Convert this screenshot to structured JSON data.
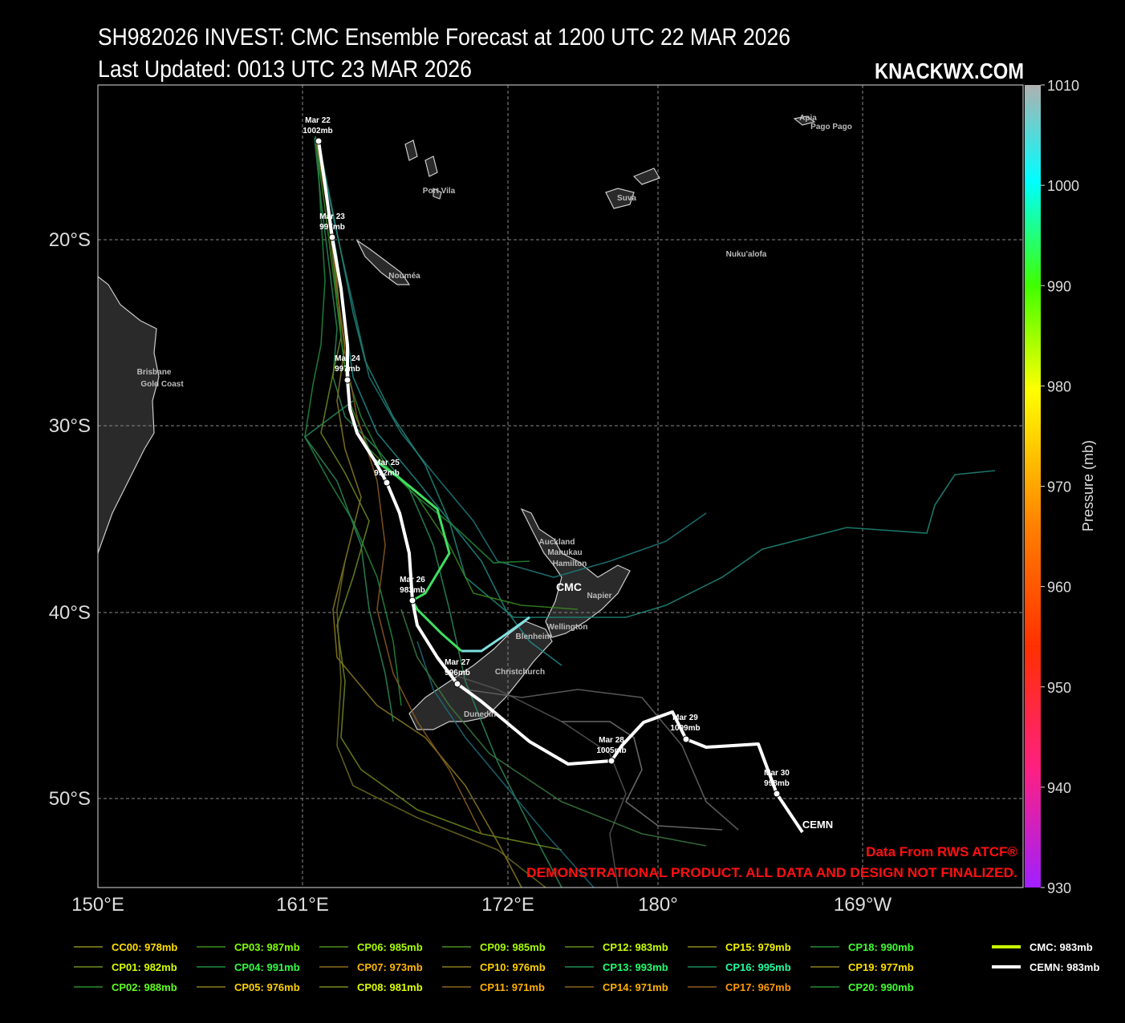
{
  "header": {
    "title": "SH982026 INVEST: CMC Ensemble Forecast at 1200 UTC 22 MAR 2026",
    "subtitle": "Last Updated: 0013 UTC 23 MAR 2026",
    "brand": "KNACKWX.COM"
  },
  "map": {
    "lat_labels": [
      "20°S",
      "30°S",
      "40°S",
      "50°S"
    ],
    "lon_labels": [
      "150°E",
      "161°E",
      "172°E",
      "180°",
      "169°W"
    ],
    "places": [
      "Apia",
      "Pago Pago",
      "Port Vila",
      "Suva",
      "Nuku'alofa",
      "Nouméa",
      "Brisbane",
      "Gold Coast",
      "Auckland",
      "Manukau",
      "Hamilton",
      "Napier",
      "Wellington",
      "Blenheim",
      "Christchurch",
      "Dunedin"
    ],
    "track_points": [
      {
        "date": "Mar 22",
        "pressure": "1002mb"
      },
      {
        "date": "Mar 23",
        "pressure": "997mb"
      },
      {
        "date": "Mar 24",
        "pressure": "997mb"
      },
      {
        "date": "Mar 25",
        "pressure": "992mb"
      },
      {
        "date": "Mar 26",
        "pressure": "983mb"
      },
      {
        "date": "Mar 27",
        "pressure": "996mb"
      },
      {
        "date": "Mar 28",
        "pressure": "1005mb"
      },
      {
        "date": "Mar 29",
        "pressure": "1009mb"
      },
      {
        "date": "Mar 30",
        "pressure": "998mb"
      }
    ],
    "track_names": [
      "CMC",
      "CEMN"
    ]
  },
  "colorbar": {
    "label": "Pressure (mb)",
    "lim": [
      930,
      1010
    ],
    "ticks": [
      930,
      940,
      950,
      960,
      970,
      980,
      990,
      1000,
      1010
    ]
  },
  "legend": [
    {
      "label": "CC00: 978mb",
      "color": "#ffe000",
      "line": "#8a8a20"
    },
    {
      "label": "CP01: 982mb",
      "color": "#d8ff00",
      "line": "#6f8a20"
    },
    {
      "label": "CP02: 988mb",
      "color": "#60ff20",
      "line": "#2a8a30"
    },
    {
      "label": "CP03: 987mb",
      "color": "#80ff00",
      "line": "#3a8a20"
    },
    {
      "label": "CP04: 991mb",
      "color": "#30ff40",
      "line": "#208a40"
    },
    {
      "label": "CP05: 976mb",
      "color": "#ffd000",
      "line": "#8a7a20"
    },
    {
      "label": "CP06: 985mb",
      "color": "#a8ff00",
      "line": "#4f8a20"
    },
    {
      "label": "CP07: 973mb",
      "color": "#ffb800",
      "line": "#8a6a20"
    },
    {
      "label": "CP08: 981mb",
      "color": "#e0ff00",
      "line": "#7a8a20"
    },
    {
      "label": "CP09: 985mb",
      "color": "#a8ff00",
      "line": "#4f8a20"
    },
    {
      "label": "CP10: 976mb",
      "color": "#ffd000",
      "line": "#8a7a20"
    },
    {
      "label": "CP11: 971mb",
      "color": "#ffb000",
      "line": "#8a6420"
    },
    {
      "label": "CP12: 983mb",
      "color": "#c8ff00",
      "line": "#608a20"
    },
    {
      "label": "CP13: 993mb",
      "color": "#20ff70",
      "line": "#208a50"
    },
    {
      "label": "CP14: 971mb",
      "color": "#ffb000",
      "line": "#8a6420"
    },
    {
      "label": "CP15: 979mb",
      "color": "#f0f000",
      "line": "#8a8a20"
    },
    {
      "label": "CP16: 995mb",
      "color": "#20ffa0",
      "line": "#208a60"
    },
    {
      "label": "CP17: 967mb",
      "color": "#ff9800",
      "line": "#8a5a20"
    },
    {
      "label": "CP18: 990mb",
      "color": "#40ff30",
      "line": "#258a35"
    },
    {
      "label": "CP19: 977mb",
      "color": "#ffe000",
      "line": "#8a8020"
    },
    {
      "label": "CP20: 990mb",
      "color": "#40ff30",
      "line": "#258a35"
    },
    {
      "label": "CMC: 983mb",
      "color": "#ffffff",
      "line": "#c8ff00"
    },
    {
      "label": "CEMN: 983mb",
      "color": "#ffffff",
      "line": "#ffffff"
    }
  ],
  "credits": [
    "Data From RWS ATCF®",
    "DEMONSTRATIONAL PRODUCT. ALL DATA AND DESIGN NOT FINALIZED."
  ]
}
